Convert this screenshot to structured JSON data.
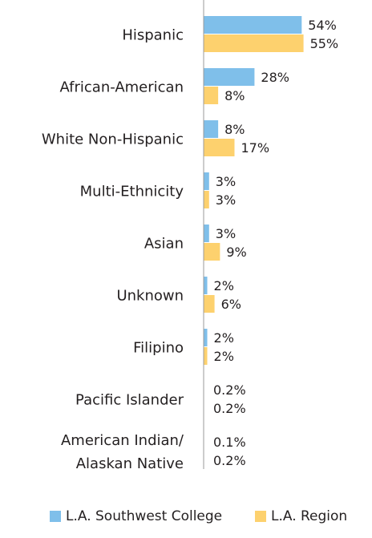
{
  "chart_data": {
    "type": "bar",
    "orientation": "horizontal",
    "categories": [
      [
        "Hispanic"
      ],
      [
        "African-American"
      ],
      [
        "White Non-Hispanic"
      ],
      [
        "Multi-Ethnicity"
      ],
      [
        "Asian"
      ],
      [
        "Unknown"
      ],
      [
        "Filipino"
      ],
      [
        "Pacific Islander"
      ],
      [
        "American Indian/",
        "Alaskan Native"
      ]
    ],
    "series": [
      {
        "name": "L.A. Southwest College",
        "color": "#7fbfea",
        "values": [
          54,
          28,
          8,
          3,
          3,
          2,
          2,
          0.2,
          0.1
        ],
        "labels": [
          "54%",
          "28%",
          "8%",
          "3%",
          "3%",
          "2%",
          "2%",
          "0.2%",
          "0.1%"
        ]
      },
      {
        "name": "L.A. Region",
        "color": "#fdd16e",
        "values": [
          55,
          8,
          17,
          3,
          9,
          6,
          2,
          0.2,
          0.2
        ],
        "labels": [
          "55%",
          "8%",
          "17%",
          "3%",
          "9%",
          "6%",
          "2%",
          "0.2%",
          "0.2%"
        ]
      }
    ],
    "xlim": [
      0,
      60
    ],
    "axis_color": "#9a9a9a",
    "grid": false,
    "legend_position": "bottom"
  }
}
